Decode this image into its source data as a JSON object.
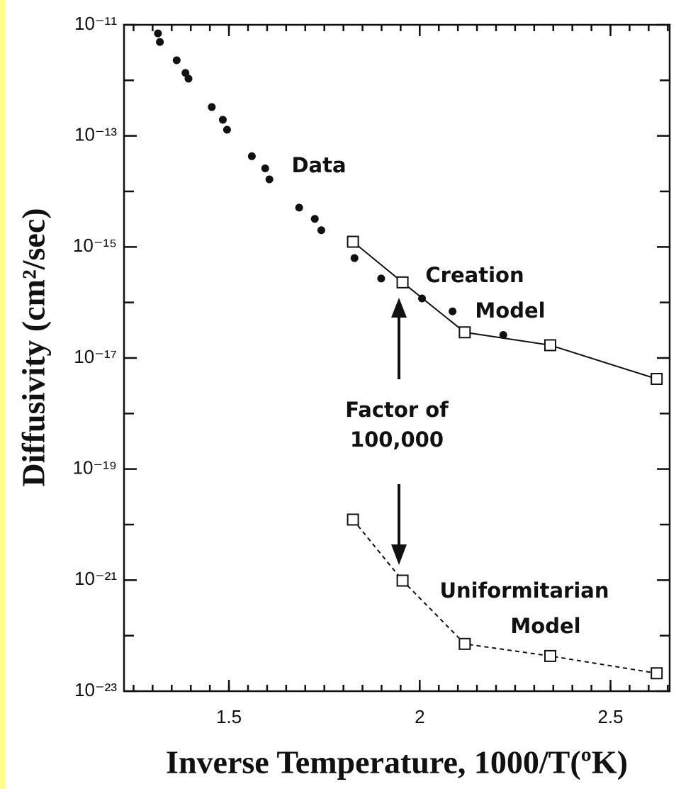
{
  "chart_data": {
    "type": "scatter",
    "xlabel": "Inverse Temperature, 1000/T(ºK)",
    "ylabel": "Diffusivity (cm²/sec)",
    "xlim": [
      1.225,
      2.655
    ],
    "xticks": [
      1.5,
      2,
      2.5
    ],
    "xminor_step": 0.05,
    "ylim": [
      1e-23,
      1e-11
    ],
    "log_y": true,
    "yticks": [
      {
        "value": 1e-11,
        "label": "10⁻¹¹"
      },
      {
        "value": 1e-13,
        "label": "10⁻¹³"
      },
      {
        "value": 1e-15,
        "label": "10⁻¹⁵"
      },
      {
        "value": 1e-17,
        "label": "10⁻¹⁷"
      },
      {
        "value": 1e-19,
        "label": "10⁻¹⁹"
      },
      {
        "value": 1e-21,
        "label": "10⁻²¹"
      },
      {
        "value": 1e-23,
        "label": "10⁻²³"
      }
    ],
    "yminor": [
      1e-12,
      1e-14,
      1e-16,
      1e-18,
      1e-20,
      1e-22
    ],
    "series": [
      {
        "marker": "dot",
        "line": "none",
        "color": "#111111",
        "x": [
          1.314,
          1.319,
          1.363,
          1.386,
          1.394,
          1.455,
          1.484,
          1.495,
          1.56,
          1.595,
          1.606,
          1.684,
          1.725,
          1.742,
          1.829,
          1.899,
          2.006,
          2.086,
          2.219
        ],
        "values": [
          7e-12,
          4.9e-12,
          2.3e-12,
          1.36e-12,
          1.07e-12,
          3.3e-13,
          1.95e-13,
          1.29e-13,
          4.3e-14,
          2.6e-14,
          1.65e-14,
          5.1e-15,
          3.2e-15,
          2e-15,
          6.3e-16,
          2.7e-16,
          1.18e-16,
          6.9e-17,
          2.6e-17
        ]
      },
      {
        "marker": "square",
        "line": "solid",
        "color": "#111111",
        "x": [
          1.825,
          1.955,
          2.118,
          2.342,
          2.621
        ],
        "values": [
          1.24e-15,
          2.3e-16,
          2.9e-17,
          1.7e-17,
          4.2e-18
        ]
      },
      {
        "marker": "square",
        "line": "dashed",
        "color": "#111111",
        "x": [
          1.825,
          1.955,
          2.118,
          2.342,
          2.621
        ],
        "values": [
          1.23e-20,
          9.8e-22,
          7.1e-23,
          4.3e-23,
          2.1e-23
        ]
      }
    ],
    "annotations": [
      "Data",
      "Creation",
      "Model",
      "Factor of",
      "100,000",
      "Uniformitarian",
      "Model"
    ]
  }
}
